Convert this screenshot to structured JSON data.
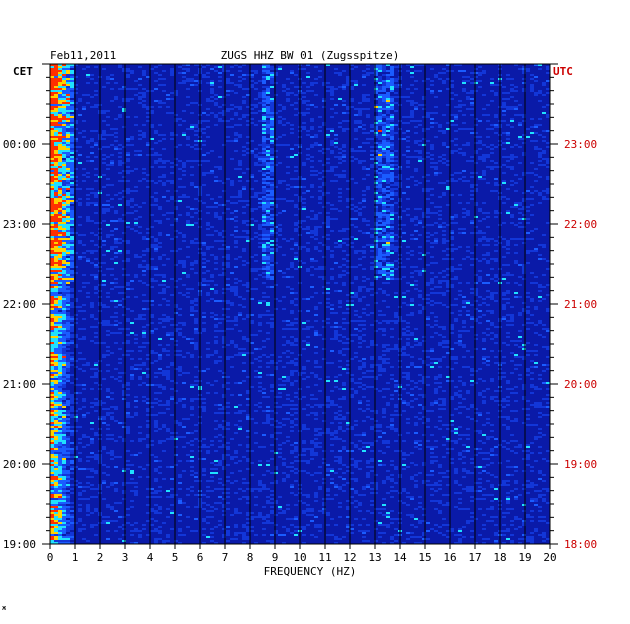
{
  "chart_data": {
    "type": "heatmap",
    "date": "Feb11,2011",
    "title": "ZUGS HHZ BW 01 (Zugsspitze)",
    "left_axis_label": "CET",
    "right_axis_label": "UTC",
    "xlabel": "FREQUENCY (HZ)",
    "x_ticks": [
      "0",
      "1",
      "2",
      "3",
      "4",
      "5",
      "6",
      "7",
      "8",
      "9",
      "10",
      "11",
      "12",
      "13",
      "14",
      "15",
      "16",
      "17",
      "18",
      "19",
      "20"
    ],
    "xlim": [
      0,
      20
    ],
    "left_ticks": [
      "00:00",
      "23:00",
      "22:00",
      "21:00",
      "20:00",
      "19:00"
    ],
    "right_ticks": [
      "23:00",
      "22:00",
      "21:00",
      "20:00",
      "19:00",
      "18:00"
    ],
    "grid": true,
    "colors": {
      "background": "#0a1aa8",
      "grid": "#000000",
      "utc_text": "#cc0000",
      "axis_text": "#000000"
    },
    "notable_features": [
      {
        "name": "low-frequency energy",
        "freq_range_hz": [
          0,
          1
        ]
      },
      {
        "name": "persistent band",
        "freq_range_hz": [
          13,
          13.8
        ]
      },
      {
        "name": "faint band",
        "freq_range_hz": [
          8.5,
          9
        ]
      }
    ]
  },
  "footer_mark": "ж"
}
